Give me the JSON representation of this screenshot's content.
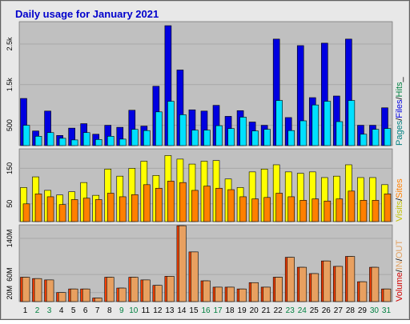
{
  "title": "Daily usage for January 2021",
  "colors": {
    "title": "#0000cc",
    "panel_bg": "#c0c0c0",
    "border": "#808080",
    "hits": "#00e0ff",
    "files": "#0000e0",
    "sites": "#ff8000",
    "visits": "#ffff00",
    "kbytes": "#ff4000",
    "in_out": "#e8a060",
    "weekend_day": "#008040",
    "weekday_day": "#000000",
    "legend_pages": "#008080",
    "legend_files": "#0000e0",
    "legend_hits": "#008040",
    "legend_visits": "#c0c000",
    "legend_sites": "#ff8000",
    "legend_inout": "#e0a060",
    "legend_volume": "#d00000"
  },
  "chart_data": {
    "type": "bar",
    "categories": [
      "1",
      "2",
      "3",
      "4",
      "5",
      "6",
      "7",
      "8",
      "9",
      "10",
      "11",
      "12",
      "13",
      "14",
      "15",
      "16",
      "17",
      "18",
      "19",
      "20",
      "21",
      "22",
      "23",
      "24",
      "25",
      "26",
      "27",
      "28",
      "29",
      "30",
      "31"
    ],
    "weekend_days": [
      "2",
      "3",
      "9",
      "10",
      "16",
      "17",
      "23",
      "24",
      "30",
      "31"
    ],
    "panels": [
      {
        "ylabels": [
          "2.5k",
          "1.5k",
          "500"
        ],
        "yticks": [
          2500,
          1500,
          500
        ],
        "ylim": [
          0,
          3050
        ],
        "legend": [
          "Pages",
          "/",
          "Files",
          "/",
          "Hits",
          "_"
        ],
        "series": [
          {
            "name": "Files",
            "values": [
              1160,
              360,
              850,
              250,
              430,
              540,
              280,
              500,
              450,
              870,
              480,
              1460,
              2950,
              1860,
              880,
              850,
              990,
              720,
              860,
              580,
              500,
              2620,
              690,
              2460,
              1180,
              2520,
              1220,
              2620,
              500,
              500,
              930
            ]
          },
          {
            "name": "Hits",
            "values": [
              500,
              230,
              320,
              180,
              140,
              320,
              150,
              230,
              160,
              400,
              370,
              830,
              1090,
              760,
              380,
              380,
              490,
              420,
              700,
              360,
              400,
              1110,
              370,
              610,
              1000,
              1090,
              590,
              1110,
              280,
              400,
              420
            ]
          }
        ]
      },
      {
        "ylabels": [
          "150",
          "50"
        ],
        "yticks": [
          150,
          50
        ],
        "ylim": [
          0,
          205
        ],
        "legend": [
          "Visits",
          "/",
          "Sites"
        ],
        "series": [
          {
            "name": "Visits",
            "values": [
              96,
              126,
              88,
              75,
              84,
              110,
              74,
              148,
              128,
              150,
              170,
              130,
              186,
              176,
              162,
              170,
              172,
              120,
              96,
              140,
              148,
              160,
              140,
              136,
              140,
              124,
              128,
              160,
              124,
              124,
              104
            ]
          },
          {
            "name": "Sites",
            "values": [
              50,
              78,
              70,
              48,
              62,
              66,
              62,
              80,
              70,
              76,
              104,
              94,
              114,
              110,
              88,
              100,
              94,
              90,
              70,
              64,
              68,
              80,
              70,
              60,
              64,
              58,
              64,
              86,
              60,
              60,
              78
            ]
          }
        ]
      },
      {
        "ylabels": [
          "140M",
          "60M",
          "20M"
        ],
        "yticks": [
          140,
          60,
          20
        ],
        "ylim": [
          0,
          170
        ],
        "legend": [
          "Volume",
          "/",
          "IN",
          "/",
          "OUT"
        ],
        "series": [
          {
            "name": "Volume",
            "values": [
              54,
              51,
              48,
              20,
              28,
              28,
              8,
              54,
              30,
              54,
              48,
              36,
              56,
              168,
              110,
              46,
              32,
              32,
              28,
              42,
              32,
              54,
              98,
              76,
              62,
              90,
              78,
              100,
              44,
              76,
              28
            ]
          },
          {
            "name": "IN/OUT",
            "values": [
              54,
              51,
              48,
              20,
              28,
              28,
              8,
              54,
              30,
              54,
              48,
              36,
              56,
              168,
              110,
              46,
              32,
              32,
              28,
              42,
              32,
              54,
              98,
              76,
              62,
              90,
              78,
              100,
              44,
              76,
              28
            ]
          }
        ]
      }
    ]
  }
}
